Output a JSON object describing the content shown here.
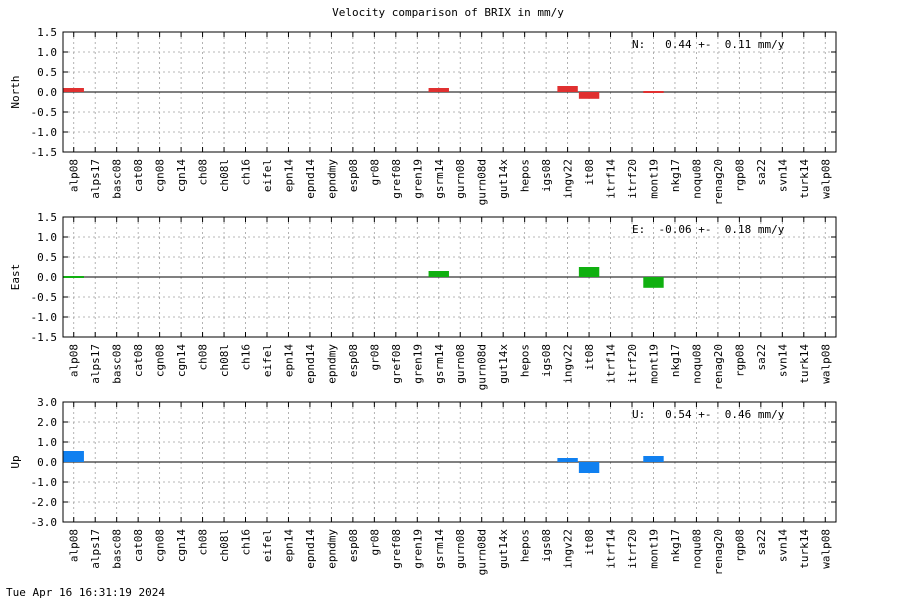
{
  "title": "Velocity comparison of BRIX in mm/y",
  "footer": "Tue Apr 16 16:31:19 2024",
  "chart_data": [
    {
      "type": "bar",
      "ylabel": "North",
      "annotation": "N:   0.44 +-  0.11 mm/y",
      "ylim": [
        -1.5,
        1.5
      ],
      "yticks": [
        "1.5",
        "1.0",
        "0.5",
        "0.0",
        "-0.5",
        "-1.0",
        "-1.5"
      ],
      "color": "#e03030",
      "grid": true,
      "categories": [
        "alp08",
        "alps17",
        "basc08",
        "cat08",
        "cgn08",
        "cgn14",
        "ch08",
        "ch08l",
        "ch16",
        "eifel",
        "epn14",
        "epnd14",
        "epndmy",
        "esp08",
        "gr08",
        "gref08",
        "gren19",
        "gsrm14",
        "gurn08",
        "gurn08d",
        "gut14x",
        "hepos",
        "igs08",
        "ingv22",
        "it08",
        "itrf14",
        "itrf20",
        "mont19",
        "nkg17",
        "noqu08",
        "renag20",
        "rgp08",
        "sa22",
        "svn14",
        "turk14",
        "walp08"
      ],
      "values": [
        0.1,
        null,
        null,
        null,
        null,
        null,
        null,
        null,
        null,
        null,
        null,
        null,
        null,
        null,
        null,
        null,
        null,
        0.1,
        null,
        null,
        null,
        null,
        null,
        0.15,
        -0.17,
        null,
        null,
        -0.02,
        null,
        null,
        null,
        null,
        null,
        null,
        null,
        null
      ]
    },
    {
      "type": "bar",
      "ylabel": "East",
      "annotation": "E:  -0.06 +-  0.18 mm/y",
      "ylim": [
        -1.5,
        1.5
      ],
      "yticks": [
        "1.5",
        "1.0",
        "0.5",
        "0.0",
        "-0.5",
        "-1.0",
        "-1.5"
      ],
      "color": "#10b010",
      "grid": true,
      "categories": [
        "alp08",
        "alps17",
        "basc08",
        "cat08",
        "cgn08",
        "cgn14",
        "ch08",
        "ch08l",
        "ch16",
        "eifel",
        "epn14",
        "epnd14",
        "epndmy",
        "esp08",
        "gr08",
        "gref08",
        "gren19",
        "gsrm14",
        "gurn08",
        "gurn08d",
        "gut14x",
        "hepos",
        "igs08",
        "ingv22",
        "it08",
        "itrf14",
        "itrf20",
        "mont19",
        "nkg17",
        "noqu08",
        "renag20",
        "rgp08",
        "sa22",
        "svn14",
        "turk14",
        "walp08"
      ],
      "values": [
        -0.02,
        null,
        null,
        null,
        null,
        null,
        null,
        null,
        null,
        null,
        null,
        null,
        null,
        null,
        null,
        null,
        null,
        0.15,
        null,
        null,
        null,
        null,
        null,
        null,
        0.25,
        null,
        null,
        -0.27,
        null,
        null,
        null,
        null,
        null,
        null,
        null,
        null
      ]
    },
    {
      "type": "bar",
      "ylabel": "Up",
      "annotation": "U:   0.54 +-  0.46 mm/y",
      "ylim": [
        -3.0,
        3.0
      ],
      "yticks": [
        "3.0",
        "2.0",
        "1.0",
        "0.0",
        "-1.0",
        "-2.0",
        "-3.0"
      ],
      "color": "#1080f0",
      "grid": true,
      "categories": [
        "alp08",
        "alps17",
        "basc08",
        "cat08",
        "cgn08",
        "cgn14",
        "ch08",
        "ch08l",
        "ch16",
        "eifel",
        "epn14",
        "epnd14",
        "epndmy",
        "esp08",
        "gr08",
        "gref08",
        "gren19",
        "gsrm14",
        "gurn08",
        "gurn08d",
        "gut14x",
        "hepos",
        "igs08",
        "ingv22",
        "it08",
        "itrf14",
        "itrf20",
        "mont19",
        "nkg17",
        "noqu08",
        "renag20",
        "rgp08",
        "sa22",
        "svn14",
        "turk14",
        "walp08"
      ],
      "values": [
        0.55,
        null,
        null,
        null,
        null,
        null,
        null,
        null,
        null,
        null,
        null,
        null,
        null,
        null,
        null,
        null,
        null,
        null,
        null,
        null,
        null,
        null,
        null,
        0.2,
        -0.55,
        null,
        null,
        0.3,
        null,
        null,
        null,
        null,
        null,
        null,
        null,
        null
      ]
    }
  ]
}
